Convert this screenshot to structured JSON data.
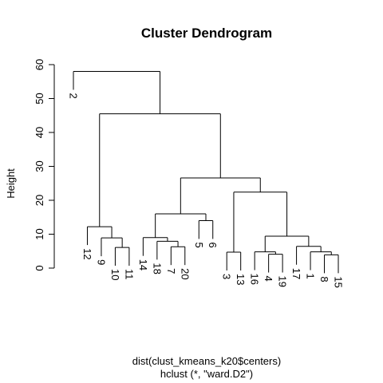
{
  "chart_data": {
    "type": "dendrogram",
    "title": "Cluster Dendrogram",
    "ylabel": "Height",
    "xlabel": "dist(clust_kmeans_k20$centers)",
    "sublabel": "hclust (*, \"ward.D2\")",
    "ylim": [
      0,
      60
    ],
    "yticks": [
      0,
      10,
      20,
      30,
      40,
      50,
      60
    ],
    "leaf_order": [
      "2",
      "12",
      "9",
      "10",
      "11",
      "14",
      "18",
      "7",
      "20",
      "5",
      "6",
      "3",
      "13",
      "16",
      "4",
      "19",
      "17",
      "1",
      "8",
      "15"
    ],
    "merges": [
      {
        "a": "L:10",
        "b": "L:11",
        "height": 6.1
      },
      {
        "a": "L:9",
        "b": "M:0",
        "height": 8.9
      },
      {
        "a": "L:12",
        "b": "M:1",
        "height": 12.2
      },
      {
        "a": "L:7",
        "b": "L:20",
        "height": 6.3
      },
      {
        "a": "L:18",
        "b": "M:3",
        "height": 7.9
      },
      {
        "a": "L:14",
        "b": "M:4",
        "height": 9.0
      },
      {
        "a": "L:5",
        "b": "L:6",
        "height": 14.0
      },
      {
        "a": "M:5",
        "b": "M:6",
        "height": 16.0
      },
      {
        "a": "L:3",
        "b": "L:13",
        "height": 4.7
      },
      {
        "a": "L:4",
        "b": "L:19",
        "height": 4.1
      },
      {
        "a": "L:16",
        "b": "M:9",
        "height": 4.8
      },
      {
        "a": "L:8",
        "b": "L:15",
        "height": 3.9
      },
      {
        "a": "L:1",
        "b": "M:11",
        "height": 4.8
      },
      {
        "a": "L:17",
        "b": "M:12",
        "height": 6.4
      },
      {
        "a": "M:10",
        "b": "M:13",
        "height": 9.4
      },
      {
        "a": "M:8",
        "b": "M:14",
        "height": 22.4
      },
      {
        "a": "M:7",
        "b": "M:15",
        "height": 26.6
      },
      {
        "a": "M:2",
        "b": "M:16",
        "height": 45.5
      },
      {
        "a": "L:2",
        "b": "M:17",
        "height": 58.0
      }
    ],
    "leaf_line_offset": 5.4
  }
}
